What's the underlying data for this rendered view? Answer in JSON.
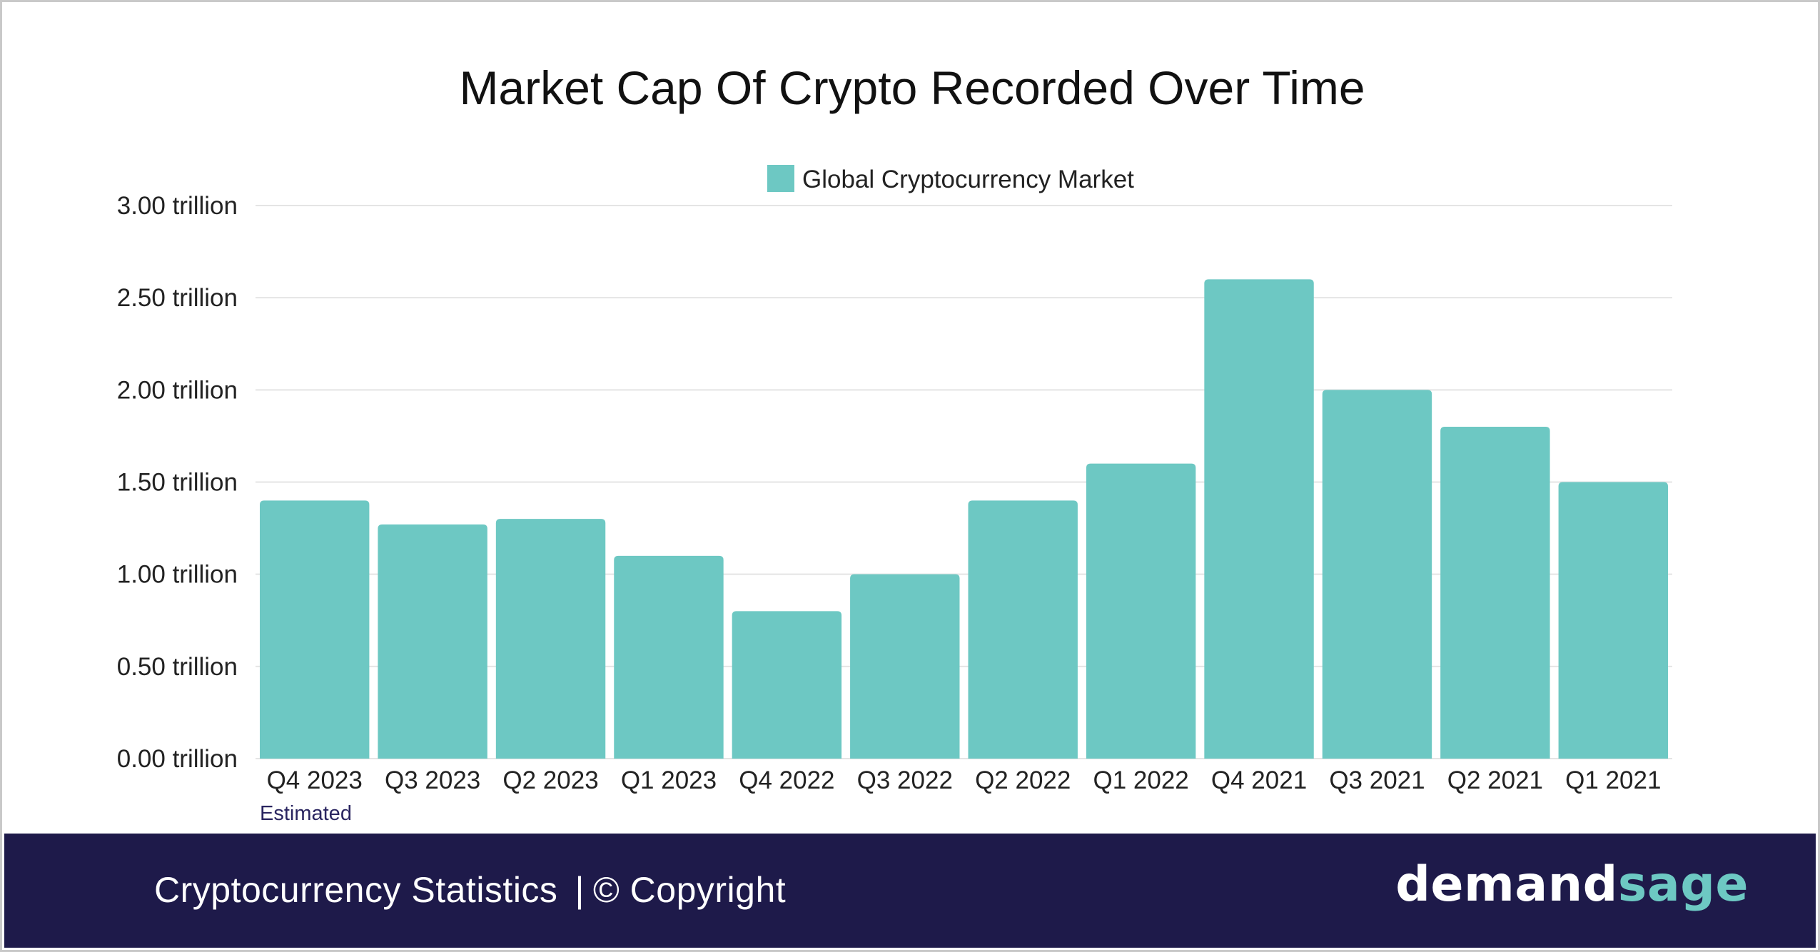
{
  "chart_data": {
    "type": "bar",
    "title": "Market Cap Of Crypto Recorded Over Time",
    "categories": [
      "Q4 2023",
      "Q3 2023",
      "Q2 2023",
      "Q1 2023",
      "Q4 2022",
      "Q3 2022",
      "Q2 2022",
      "Q1 2022",
      "Q4 2021",
      "Q3 2021",
      "Q2 2021",
      "Q1 2021"
    ],
    "series": [
      {
        "name": "Global Cryptocurrency Market",
        "values": [
          1.4,
          1.27,
          1.3,
          1.1,
          0.8,
          1.0,
          1.4,
          1.6,
          2.6,
          2.0,
          1.8,
          1.5
        ]
      }
    ],
    "yticks": [
      "0.00 trillion",
      "0.50 trillion",
      "1.00 trillion",
      "1.50 trillion",
      "2.00 trillion",
      "2.50 trillion",
      "3.00 trillion"
    ],
    "ylim": [
      0,
      3
    ],
    "xlabel": "",
    "ylabel": "",
    "legend_position": "top-center",
    "annotation": "Estimated",
    "bar_color": "#6dc8c3"
  },
  "footer": {
    "label": "Cryptocurrency Statistics",
    "separator": "|",
    "copyright": "© Copyright",
    "brand_part1": "demand",
    "brand_part2": "sage"
  },
  "colors": {
    "footer_bg": "#1e1a4a",
    "brand_accent": "#6dc8c3"
  }
}
